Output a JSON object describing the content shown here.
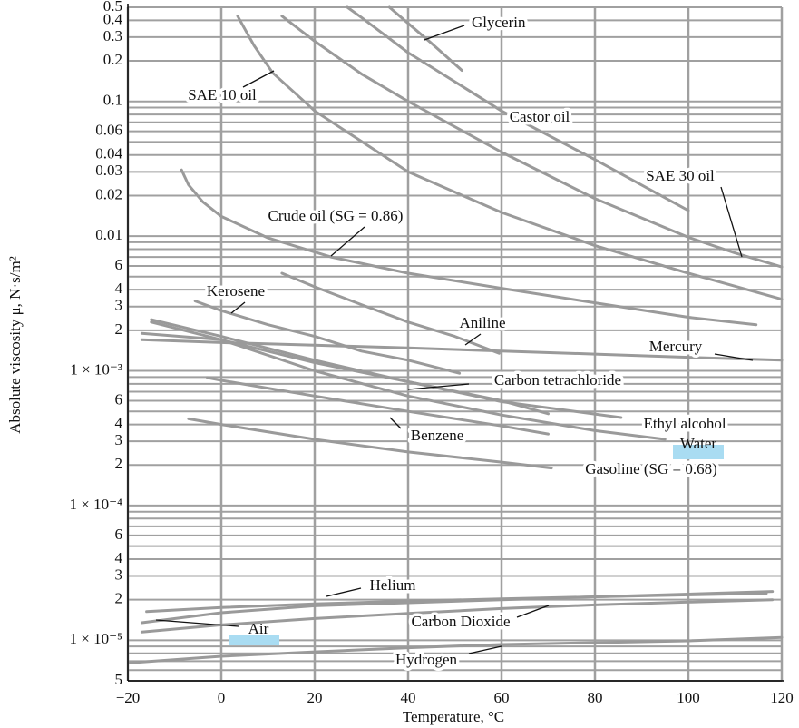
{
  "chart_data": {
    "type": "line",
    "xlabel": "Temperature, °C",
    "ylabel": "Absolute viscosity μ, N·s/m²",
    "ylog": true,
    "grid": true,
    "xlim": [
      -20,
      120
    ],
    "ylim": [
      5e-06,
      0.5
    ],
    "xticks": [
      {
        "value": -20,
        "label": "−20"
      },
      0,
      20,
      40,
      60,
      80,
      100,
      120
    ],
    "yticks": [
      0.5,
      0.4,
      0.3,
      0.2,
      0.1,
      0.06,
      0.04,
      0.03,
      0.02,
      0.01,
      {
        "value": 0.006,
        "label": "6"
      },
      {
        "value": 0.004,
        "label": "4"
      },
      {
        "value": 0.003,
        "label": "3"
      },
      {
        "value": 0.002,
        "label": "2"
      },
      {
        "value": 0.001,
        "label": "1 × 10⁻³"
      },
      {
        "value": 0.0006,
        "label": "6"
      },
      {
        "value": 0.0004,
        "label": "4"
      },
      {
        "value": 0.0003,
        "label": "3"
      },
      {
        "value": 0.0002,
        "label": "2"
      },
      {
        "value": 0.0001,
        "label": "1 × 10⁻⁴"
      },
      {
        "value": 6e-05,
        "label": "6"
      },
      {
        "value": 4e-05,
        "label": "4"
      },
      {
        "value": 3e-05,
        "label": "3"
      },
      {
        "value": 2e-05,
        "label": "2"
      },
      {
        "value": 1e-05,
        "label": "1 × 10⁻⁵"
      },
      {
        "value": 5e-06,
        "label": "5"
      }
    ],
    "yminor": [
      0.09,
      0.08,
      0.07,
      0.05,
      0.009,
      0.008,
      0.007,
      0.005,
      0.0009,
      0.0008,
      0.0007,
      0.0005,
      9e-05,
      8e-05,
      7e-05,
      5e-05,
      9e-06,
      8e-06,
      7e-06,
      6e-06
    ],
    "series": [
      {
        "name": "Glycerin",
        "color": "#9a9a9a",
        "x": [
          36,
          40,
          45,
          51.5
        ],
        "values": [
          0.5,
          0.38,
          0.27,
          0.17
        ]
      },
      {
        "name": "SAE 10 oil",
        "color": "#9a9a9a",
        "x": [
          3.5,
          7,
          11,
          20,
          40,
          60,
          80,
          100,
          120
        ],
        "values": [
          0.43,
          0.26,
          0.163,
          0.085,
          0.03,
          0.015,
          0.0085,
          0.0053,
          0.0034
        ]
      },
      {
        "name": "Castor oil",
        "color": "#9a9a9a",
        "x": [
          27,
          30,
          40,
          50,
          60,
          80,
          100
        ],
        "values": [
          0.5,
          0.42,
          0.23,
          0.14,
          0.085,
          0.037,
          0.0155
        ]
      },
      {
        "name": "SAE 30 oil",
        "color": "#9a9a9a",
        "x": [
          13,
          20,
          30,
          40,
          60,
          80,
          100,
          110,
          120
        ],
        "values": [
          0.43,
          0.28,
          0.16,
          0.1,
          0.042,
          0.019,
          0.0098,
          0.0075,
          0.0059
        ]
      },
      {
        "name": "Crude oil (SG = 0.86)",
        "color": "#9a9a9a",
        "x": [
          -8.5,
          -7,
          -4,
          0,
          10,
          23.5,
          40,
          60,
          80,
          100,
          114.5
        ],
        "values": [
          0.031,
          0.024,
          0.018,
          0.014,
          0.0097,
          0.007,
          0.0053,
          0.0041,
          0.0032,
          0.0025,
          0.0022
        ]
      },
      {
        "name": "Kerosene",
        "color": "#9a9a9a",
        "x": [
          -5.6,
          0,
          10,
          20,
          30,
          40,
          51
        ],
        "values": [
          0.0033,
          0.0028,
          0.0022,
          0.0018,
          0.0014,
          0.0012,
          0.00096
        ]
      },
      {
        "name": "Aniline",
        "color": "#9a9a9a",
        "x": [
          13,
          20,
          30,
          40,
          50,
          59.5
        ],
        "values": [
          0.0053,
          0.0042,
          0.0031,
          0.0023,
          0.0018,
          0.00135
        ]
      },
      {
        "name": "Mercury",
        "color": "#9a9a9a",
        "x": [
          -17,
          0,
          20,
          40,
          60,
          80,
          100,
          120
        ],
        "values": [
          0.0017,
          0.00162,
          0.00155,
          0.00148,
          0.0014,
          0.00133,
          0.00126,
          0.0012
        ]
      },
      {
        "name": "Carbon tetrachloride",
        "color": "#9a9a9a",
        "x": [
          -15,
          0,
          20,
          40,
          60,
          70
        ],
        "values": [
          0.0023,
          0.0017,
          0.00115,
          0.00083,
          0.0006,
          0.00048
        ]
      },
      {
        "name": "Ethyl alcohol",
        "color": "#9a9a9a",
        "x": [
          -15,
          0,
          20,
          40,
          60,
          85.6
        ],
        "values": [
          0.0024,
          0.0018,
          0.0012,
          0.00083,
          0.00059,
          0.00045
        ]
      },
      {
        "name": "Water",
        "color": "#9a9a9a",
        "x": [
          -17,
          0,
          20,
          40,
          60,
          80,
          95
        ],
        "values": [
          0.0019,
          0.0017,
          0.001,
          0.00065,
          0.00047,
          0.00036,
          0.00031
        ]
      },
      {
        "name": "Benzene",
        "color": "#9a9a9a",
        "x": [
          -3,
          0,
          20,
          40,
          60,
          70
        ],
        "values": [
          0.00089,
          0.00085,
          0.00065,
          0.0005,
          0.00039,
          0.00034
        ]
      },
      {
        "name": "Gasoline (SG = 0.68)",
        "color": "#9a9a9a",
        "x": [
          -7,
          0,
          20,
          40,
          60,
          70.7
        ],
        "values": [
          0.00044,
          0.0004,
          0.00031,
          0.00025,
          0.00021,
          0.00019
        ]
      },
      {
        "name": "Helium",
        "color": "#9a9a9a",
        "x": [
          -16,
          0,
          20,
          40,
          60,
          80,
          100,
          116.7
        ],
        "values": [
          1.63e-05,
          1.75e-05,
          1.86e-05,
          1.95e-05,
          2.03e-05,
          2.1e-05,
          2.17e-05,
          2.23e-05
        ]
      },
      {
        "name": "Air",
        "color": "#9a9a9a",
        "x": [
          -17,
          0,
          20,
          40,
          60,
          80,
          100,
          118
        ],
        "values": [
          1.35e-05,
          1.6e-05,
          1.8e-05,
          1.9e-05,
          2e-05,
          2.1e-05,
          2.2e-05,
          2.3e-05
        ]
      },
      {
        "name": "Carbon Dioxide",
        "color": "#9a9a9a",
        "x": [
          -17,
          0,
          20,
          40,
          60,
          80,
          100,
          118
        ],
        "values": [
          1.15e-05,
          1.3e-05,
          1.45e-05,
          1.58e-05,
          1.72e-05,
          1.83e-05,
          1.92e-05,
          2e-05
        ]
      },
      {
        "name": "Hydrogen",
        "color": "#9a9a9a",
        "x": [
          -19.6,
          0,
          20,
          40,
          60,
          80,
          100,
          120
        ],
        "values": [
          6.8e-06,
          7.6e-06,
          8.2e-06,
          8.8e-06,
          9.3e-06,
          9.6e-06,
          9.9e-06,
          1.05e-05
        ]
      }
    ]
  }
}
